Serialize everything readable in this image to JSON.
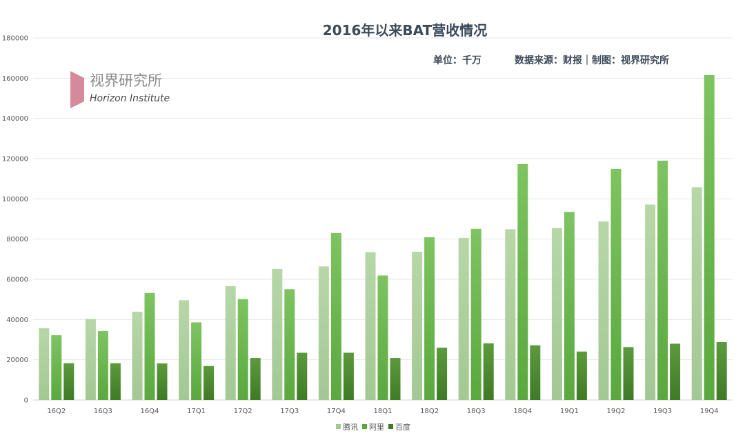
{
  "header": {
    "title": "2016年以来BAT营收情况",
    "unit": "单位：千万",
    "source": "数据来源：财报｜制图：视界研究所"
  },
  "logo": {
    "chinese": "视界研究所",
    "english": "Horizon Institute",
    "color": "#d48a9a"
  },
  "chart_data": {
    "type": "bar",
    "categories": [
      "16Q2",
      "16Q3",
      "16Q4",
      "17Q1",
      "17Q2",
      "17Q3",
      "17Q4",
      "18Q1",
      "18Q2",
      "18Q3",
      "18Q4",
      "19Q1",
      "19Q2",
      "19Q3",
      "19Q4"
    ],
    "series": [
      {
        "name": "腾讯",
        "color_top": "#b7d7a8",
        "color_bottom": "#a3c893",
        "values": [
          35700,
          40300,
          43900,
          49600,
          56600,
          65200,
          66400,
          73500,
          73700,
          80600,
          84900,
          85500,
          88800,
          97200,
          105800
        ]
      },
      {
        "name": "阿里",
        "color_top": "#7ec462",
        "color_bottom": "#5aa83e",
        "values": [
          32200,
          34300,
          53200,
          38600,
          50200,
          55100,
          83000,
          61900,
          80900,
          85100,
          117300,
          93500,
          114900,
          119000,
          161500
        ]
      },
      {
        "name": "百度",
        "color_top": "#5c9a3c",
        "color_bottom": "#3f7a26",
        "values": [
          18300,
          18300,
          18200,
          16900,
          20900,
          23500,
          23500,
          20900,
          26000,
          28200,
          27200,
          24100,
          26300,
          28000,
          28800
        ]
      }
    ],
    "ylim": [
      0,
      180000
    ],
    "yticks": [
      0,
      20000,
      40000,
      60000,
      80000,
      100000,
      120000,
      140000,
      160000,
      180000
    ],
    "grid": true,
    "legend_position": "bottom",
    "title": "2016年以来BAT营收情况"
  }
}
